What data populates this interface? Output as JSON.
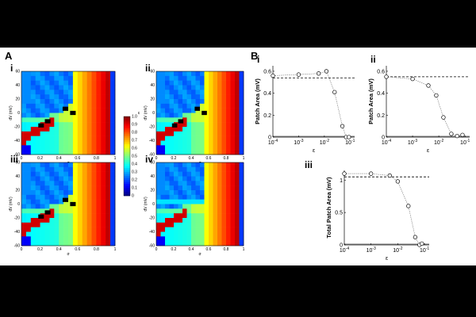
{
  "figure": {
    "panel_A_label": "A",
    "panel_B_label": "B",
    "colorbar": {
      "ticks": [
        "1.0",
        "0.9",
        "0.8",
        "0.7",
        "0.6",
        "0.5",
        "0.4",
        "0.3",
        "0.2",
        "0.1",
        "0"
      ],
      "label": "ε"
    }
  },
  "chart_data": [
    {
      "type": "heatmap",
      "panel": "A-i",
      "label": "i",
      "xlabel": "σ",
      "ylabel": "dV (mV)",
      "xlim": [
        0,
        1
      ],
      "ylim": [
        -60,
        60
      ],
      "x_ticks": [
        "0",
        "0.2",
        "0.4",
        "0.6",
        "0.8",
        "1"
      ],
      "y_ticks": [
        "60",
        "40",
        "20",
        "0",
        "-20",
        "-40",
        "-60"
      ]
    },
    {
      "type": "heatmap",
      "panel": "A-ii",
      "label": "ii",
      "xlabel": "σ",
      "ylabel": "dV (mV)",
      "xlim": [
        0,
        1
      ],
      "ylim": [
        -60,
        60
      ],
      "x_ticks": [
        "0",
        "0.2",
        "0.4",
        "0.6",
        "0.8",
        "1"
      ],
      "y_ticks": [
        "60",
        "40",
        "20",
        "0",
        "-20",
        "-40",
        "-60"
      ]
    },
    {
      "type": "heatmap",
      "panel": "A-iii",
      "label": "iii",
      "xlabel": "σ",
      "ylabel": "dV (mV)",
      "xlim": [
        0,
        1
      ],
      "ylim": [
        -60,
        60
      ],
      "x_ticks": [
        "0",
        "0.2",
        "0.4",
        "0.6",
        "0.8",
        "1"
      ],
      "y_ticks": [
        "60",
        "40",
        "20",
        "0",
        "-20",
        "-40",
        "-60"
      ]
    },
    {
      "type": "heatmap",
      "panel": "A-iv",
      "label": "iv",
      "xlabel": "σ",
      "ylabel": "dV (mV)",
      "xlim": [
        0,
        1
      ],
      "ylim": [
        -60,
        60
      ],
      "x_ticks": [
        "0",
        "0.2",
        "0.4",
        "0.6",
        "0.8",
        "1"
      ],
      "y_ticks": [
        "60",
        "40",
        "20",
        "0",
        "-20",
        "-40",
        "-60"
      ]
    },
    {
      "type": "line",
      "panel": "B-i",
      "label": "i",
      "xlabel": "ε",
      "ylabel": "Patch Area (mV)",
      "x_scale": "log",
      "xlim": [
        0.0001,
        0.15
      ],
      "ylim": [
        0,
        0.65
      ],
      "x_ticks": [
        "10-4",
        "10-3",
        "10-2",
        "10-1"
      ],
      "y_ticks": [
        "0",
        "0.2",
        "0.4",
        "0.6"
      ],
      "reference_line": 0.54,
      "series": [
        {
          "x": [
            0.0001,
            0.001,
            0.006,
            0.012,
            0.025,
            0.05,
            0.07,
            0.09
          ],
          "y": [
            0.56,
            0.57,
            0.58,
            0.6,
            0.41,
            0.1,
            0.0,
            0.0
          ]
        }
      ]
    },
    {
      "type": "line",
      "panel": "B-ii",
      "label": "ii",
      "xlabel": "ε",
      "ylabel": "Patch Area (mV)",
      "x_scale": "log",
      "xlim": [
        0.0001,
        0.15
      ],
      "ylim": [
        0,
        0.65
      ],
      "x_ticks": [
        "10-4",
        "10-3",
        "10-2",
        "10-1"
      ],
      "y_ticks": [
        "0",
        "0.2",
        "0.4",
        "0.6"
      ],
      "reference_line": 0.55,
      "series": [
        {
          "x": [
            0.0001,
            0.001,
            0.004,
            0.008,
            0.015,
            0.03,
            0.05,
            0.08
          ],
          "y": [
            0.55,
            0.53,
            0.47,
            0.38,
            0.18,
            0.03,
            0.01,
            0.02
          ]
        }
      ]
    },
    {
      "type": "line",
      "panel": "B-iii",
      "label": "iii",
      "xlabel": "ε",
      "ylabel": "Total Patch Area (mV)",
      "x_scale": "log",
      "xlim": [
        0.0001,
        0.15
      ],
      "ylim": [
        0,
        1.15
      ],
      "x_ticks": [
        "10-4",
        "10-3",
        "10-2",
        "10-1"
      ],
      "y_ticks": [
        "0",
        "0.5",
        "1"
      ],
      "reference_line": 1.05,
      "series": [
        {
          "x": [
            0.0001,
            0.001,
            0.005,
            0.01,
            0.025,
            0.045,
            0.065,
            0.08
          ],
          "y": [
            1.1,
            1.1,
            1.07,
            0.98,
            0.6,
            0.12,
            0.0,
            0.02
          ]
        }
      ]
    }
  ]
}
